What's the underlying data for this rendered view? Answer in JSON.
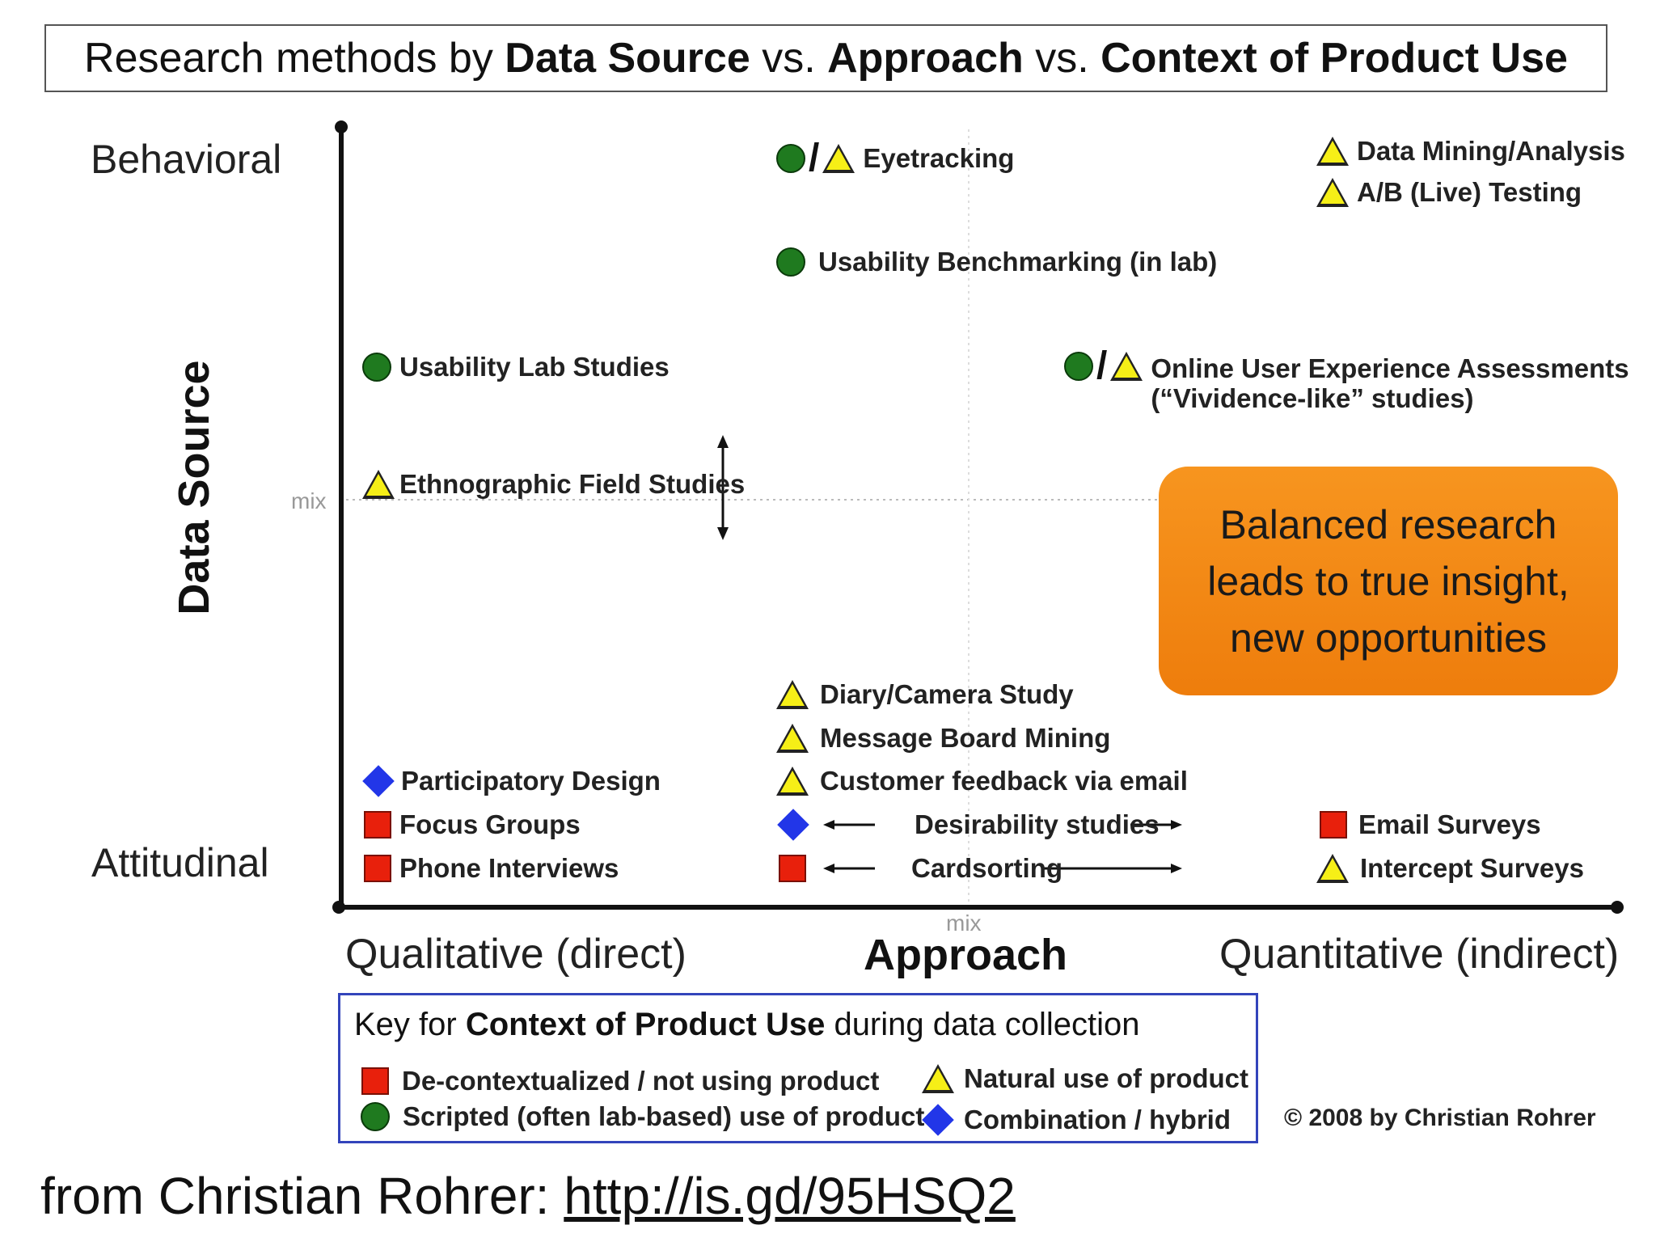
{
  "title": {
    "prefix": "Research methods by ",
    "part1": "Data Source",
    "sep1": " vs. ",
    "part2": "Approach",
    "sep2": " vs. ",
    "part3": "Context of Product Use"
  },
  "axes": {
    "y_title": "Data Source",
    "y_top": "Behavioral",
    "y_bottom": "Attitudinal",
    "y_mid": "mix",
    "x_title": "Approach",
    "x_left": "Qualitative (direct)",
    "x_right": "Quantitative (indirect)",
    "x_mid": "mix"
  },
  "methods": {
    "eyetracking": "Eyetracking",
    "data_mining": "Data Mining/Analysis",
    "ab_testing": "A/B (Live) Testing",
    "usability_benchmarking": "Usability Benchmarking (in lab)",
    "usability_lab": "Usability Lab Studies",
    "online_ux_line1": "Online User Experience Assessments",
    "online_ux_line2": "(“Vividence-like” studies)",
    "ethnographic": "Ethnographic Field Studies",
    "diary": "Diary/Camera Study",
    "message_board": "Message Board Mining",
    "customer_feedback": "Customer feedback via email",
    "participatory": "Participatory Design",
    "focus_groups": "Focus Groups",
    "phone_interviews": "Phone Interviews",
    "desirability": "Desirability studies",
    "cardsorting": "Cardsorting",
    "email_surveys": "Email Surveys",
    "intercept_surveys": "Intercept Surveys"
  },
  "callout": {
    "line1": "Balanced research",
    "line2": "leads to true insight,",
    "line3": "new opportunities"
  },
  "key": {
    "title_prefix": "Key for ",
    "title_bold": "Context of Product Use",
    "title_suffix": " during data collection",
    "decontextualized": "De-contextualized / not using product",
    "scripted": "Scripted (often lab-based) use of product",
    "natural": "Natural use of product",
    "combination": "Combination /  hybrid"
  },
  "copyright": "© 2008 by Christian Rohrer",
  "source": {
    "prefix": "from Christian Rohrer: ",
    "link": "http://is.gd/95HSQ2"
  },
  "colors": {
    "scripted": "#1f7a1f",
    "decontextualized": "#e8200c",
    "natural": "#f6ef17",
    "combination": "#2236e8",
    "callout": "#f28a16",
    "key_border": "#3344bb"
  }
}
